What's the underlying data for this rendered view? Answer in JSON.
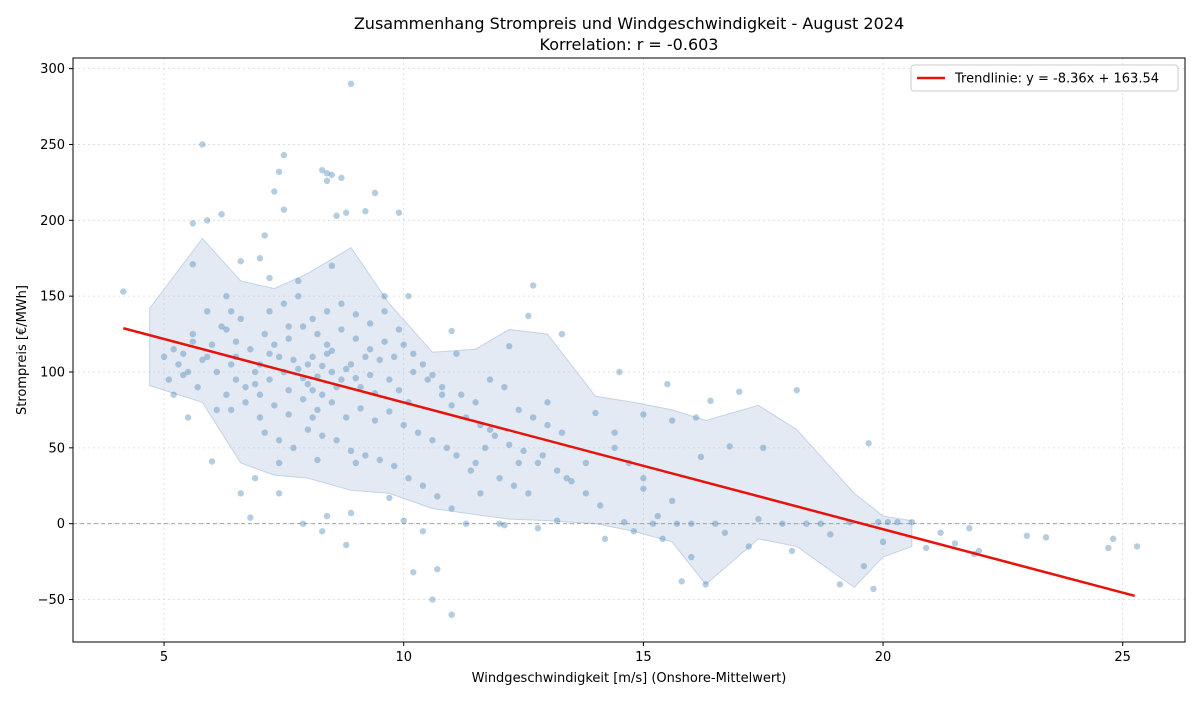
{
  "chart_data": {
    "type": "scatter",
    "title": "Zusammenhang Strompreis und Windgeschwindigkeit - August 2024",
    "subtitle": "Korrelation: r = -0.603",
    "xlabel": "Windgeschwindigkeit [m/s] (Onshore-Mittelwert)",
    "ylabel": "Strompreis [€/MWh]",
    "xlim": [
      3.1,
      26.3
    ],
    "ylim": [
      -78,
      307
    ],
    "xticks": [
      5,
      10,
      15,
      20,
      25
    ],
    "yticks": [
      -50,
      0,
      50,
      100,
      150,
      200,
      250,
      300
    ],
    "grid": true,
    "legend_position": "top-right",
    "colors": {
      "points": "#4682b4",
      "trend": "#e8120c",
      "band": "#b0c4de",
      "zero_line": "#999999"
    },
    "trend": {
      "name": "Trendlinie: y = -8.36x + 163.54",
      "slope": -8.36,
      "intercept": 163.54,
      "x_range": [
        4.15,
        25.25
      ]
    },
    "band": {
      "x": [
        4.7,
        5.8,
        6.6,
        7.3,
        8.0,
        8.9,
        9.7,
        10.6,
        11.5,
        12.2,
        13.0,
        14.0,
        14.8,
        15.6,
        16.3,
        17.4,
        18.2,
        19.4,
        20.0,
        20.6
      ],
      "upper": [
        142,
        188,
        160,
        155,
        165,
        182,
        145,
        113,
        115,
        128,
        125,
        84,
        80,
        75,
        68,
        78,
        62,
        20,
        5,
        2
      ],
      "lower": [
        91,
        80,
        40,
        32,
        30,
        22,
        20,
        10,
        6,
        3,
        2,
        0,
        -5,
        -12,
        -40,
        -10,
        -15,
        -42,
        -22,
        -15
      ]
    },
    "zero_line": 0,
    "scatter_points": [
      [
        4.15,
        153
      ],
      [
        5.0,
        110
      ],
      [
        5.4,
        98
      ],
      [
        5.5,
        70
      ],
      [
        5.2,
        115
      ],
      [
        5.6,
        125
      ],
      [
        5.8,
        250
      ],
      [
        5.9,
        140
      ],
      [
        6.0,
        41
      ],
      [
        6.2,
        204
      ],
      [
        6.3,
        150
      ],
      [
        5.6,
        198
      ],
      [
        5.6,
        171
      ],
      [
        5.9,
        200
      ],
      [
        6.1,
        75
      ],
      [
        6.3,
        128
      ],
      [
        6.5,
        110
      ],
      [
        6.6,
        20
      ],
      [
        6.8,
        4
      ],
      [
        6.6,
        173
      ],
      [
        6.9,
        30
      ],
      [
        7.0,
        175
      ],
      [
        7.1,
        190
      ],
      [
        7.2,
        162
      ],
      [
        7.3,
        219
      ],
      [
        7.4,
        232
      ],
      [
        7.5,
        243
      ],
      [
        7.5,
        207
      ],
      [
        7.4,
        20
      ],
      [
        7.4,
        40
      ],
      [
        7.6,
        130
      ],
      [
        7.8,
        160
      ],
      [
        7.9,
        0
      ],
      [
        8.1,
        70
      ],
      [
        8.2,
        42
      ],
      [
        8.3,
        233
      ],
      [
        8.4,
        231
      ],
      [
        8.4,
        226
      ],
      [
        8.5,
        230
      ],
      [
        8.5,
        170
      ],
      [
        8.3,
        -5
      ],
      [
        8.4,
        5
      ],
      [
        8.6,
        203
      ],
      [
        8.7,
        228
      ],
      [
        8.8,
        205
      ],
      [
        8.8,
        -14
      ],
      [
        8.9,
        290
      ],
      [
        8.9,
        7
      ],
      [
        9.0,
        40
      ],
      [
        9.2,
        206
      ],
      [
        9.4,
        218
      ],
      [
        9.6,
        150
      ],
      [
        9.7,
        17
      ],
      [
        9.9,
        205
      ],
      [
        10.0,
        2
      ],
      [
        10.1,
        150
      ],
      [
        10.2,
        -32
      ],
      [
        10.4,
        -5
      ],
      [
        10.6,
        -50
      ],
      [
        10.7,
        -30
      ],
      [
        11.0,
        -60
      ],
      [
        11.0,
        127
      ],
      [
        11.1,
        112
      ],
      [
        11.3,
        0
      ],
      [
        11.5,
        40
      ],
      [
        11.6,
        20
      ],
      [
        11.8,
        62
      ],
      [
        12.0,
        0
      ],
      [
        12.1,
        -1
      ],
      [
        12.2,
        117
      ],
      [
        12.4,
        40
      ],
      [
        12.6,
        137
      ],
      [
        12.7,
        157
      ],
      [
        12.8,
        -3
      ],
      [
        13.0,
        80
      ],
      [
        13.2,
        2
      ],
      [
        13.3,
        125
      ],
      [
        13.4,
        30
      ],
      [
        13.8,
        40
      ],
      [
        14.0,
        73
      ],
      [
        14.2,
        -10
      ],
      [
        14.4,
        60
      ],
      [
        14.5,
        100
      ],
      [
        14.6,
        1
      ],
      [
        14.8,
        -5
      ],
      [
        15.0,
        72
      ],
      [
        15.0,
        23
      ],
      [
        15.2,
        0
      ],
      [
        15.4,
        -10
      ],
      [
        15.5,
        92
      ],
      [
        15.6,
        68
      ],
      [
        15.7,
        0
      ],
      [
        15.8,
        -38
      ],
      [
        16.0,
        -22
      ],
      [
        16.0,
        0
      ],
      [
        16.1,
        70
      ],
      [
        16.2,
        44
      ],
      [
        16.3,
        -40
      ],
      [
        16.4,
        81
      ],
      [
        16.5,
        0
      ],
      [
        16.7,
        -6
      ],
      [
        16.8,
        51
      ],
      [
        17.0,
        87
      ],
      [
        17.2,
        -15
      ],
      [
        17.4,
        3
      ],
      [
        17.5,
        50
      ],
      [
        17.9,
        0
      ],
      [
        18.1,
        -18
      ],
      [
        18.2,
        88
      ],
      [
        18.4,
        0
      ],
      [
        18.7,
        0
      ],
      [
        18.9,
        -7
      ],
      [
        19.1,
        -40
      ],
      [
        19.3,
        1
      ],
      [
        19.6,
        -28
      ],
      [
        19.7,
        53
      ],
      [
        19.8,
        -43
      ],
      [
        19.9,
        1
      ],
      [
        20.0,
        -12
      ],
      [
        20.1,
        1
      ],
      [
        20.3,
        1
      ],
      [
        20.6,
        1
      ],
      [
        20.9,
        -16
      ],
      [
        21.2,
        -6
      ],
      [
        21.5,
        -13
      ],
      [
        21.8,
        -3
      ],
      [
        21.9,
        -20
      ],
      [
        22.0,
        -18
      ],
      [
        23.0,
        -8
      ],
      [
        23.4,
        -9
      ],
      [
        24.7,
        -16
      ],
      [
        24.8,
        -10
      ],
      [
        25.3,
        -15
      ],
      [
        6.4,
        105
      ],
      [
        6.7,
        90
      ],
      [
        6.9,
        100
      ],
      [
        7.0,
        85
      ],
      [
        7.2,
        95
      ],
      [
        7.4,
        110
      ],
      [
        7.6,
        88
      ],
      [
        7.8,
        102
      ],
      [
        8.0,
        92
      ],
      [
        8.1,
        110
      ],
      [
        8.3,
        85
      ],
      [
        8.5,
        100
      ],
      [
        8.7,
        95
      ],
      [
        8.9,
        105
      ],
      [
        9.1,
        90
      ],
      [
        9.3,
        98
      ],
      [
        9.5,
        108
      ],
      [
        9.7,
        95
      ],
      [
        9.9,
        88
      ],
      [
        10.1,
        80
      ],
      [
        6.5,
        120
      ],
      [
        6.8,
        115
      ],
      [
        7.1,
        125
      ],
      [
        7.3,
        118
      ],
      [
        7.6,
        122
      ],
      [
        7.9,
        130
      ],
      [
        8.2,
        125
      ],
      [
        8.4,
        118
      ],
      [
        8.7,
        128
      ],
      [
        9.0,
        122
      ],
      [
        9.3,
        115
      ],
      [
        9.6,
        120
      ],
      [
        9.8,
        110
      ],
      [
        10.2,
        100
      ],
      [
        10.5,
        95
      ],
      [
        10.8,
        90
      ],
      [
        6.4,
        75
      ],
      [
        6.7,
        80
      ],
      [
        7.0,
        70
      ],
      [
        7.3,
        78
      ],
      [
        7.6,
        72
      ],
      [
        7.9,
        82
      ],
      [
        8.2,
        75
      ],
      [
        8.5,
        80
      ],
      [
        8.8,
        70
      ],
      [
        9.1,
        76
      ],
      [
        9.4,
        68
      ],
      [
        9.7,
        74
      ],
      [
        10.0,
        65
      ],
      [
        10.3,
        60
      ],
      [
        10.6,
        55
      ],
      [
        10.9,
        50
      ],
      [
        11.2,
        85
      ],
      [
        11.5,
        80
      ],
      [
        11.8,
        95
      ],
      [
        12.1,
        90
      ],
      [
        12.4,
        75
      ],
      [
        12.7,
        70
      ],
      [
        13.0,
        65
      ],
      [
        13.3,
        60
      ],
      [
        11.1,
        45
      ],
      [
        11.4,
        35
      ],
      [
        11.7,
        50
      ],
      [
        12.0,
        30
      ],
      [
        12.3,
        25
      ],
      [
        12.6,
        20
      ],
      [
        12.9,
        45
      ],
      [
        13.2,
        35
      ],
      [
        13.5,
        28
      ],
      [
        13.8,
        20
      ],
      [
        14.1,
        12
      ],
      [
        14.4,
        50
      ],
      [
        14.7,
        40
      ],
      [
        15.0,
        30
      ],
      [
        15.3,
        5
      ],
      [
        15.6,
        15
      ],
      [
        5.1,
        95
      ],
      [
        5.3,
        105
      ],
      [
        5.5,
        100
      ],
      [
        5.7,
        90
      ],
      [
        5.9,
        110
      ],
      [
        6.1,
        100
      ],
      [
        6.3,
        85
      ],
      [
        6.5,
        95
      ],
      [
        5.2,
        85
      ],
      [
        5.4,
        112
      ],
      [
        5.6,
        120
      ],
      [
        5.8,
        108
      ],
      [
        6.0,
        118
      ],
      [
        6.2,
        130
      ],
      [
        6.4,
        140
      ],
      [
        6.6,
        135
      ],
      [
        7.1,
        60
      ],
      [
        7.4,
        55
      ],
      [
        7.7,
        50
      ],
      [
        8.0,
        62
      ],
      [
        8.3,
        58
      ],
      [
        8.6,
        55
      ],
      [
        8.9,
        48
      ],
      [
        9.2,
        45
      ],
      [
        9.5,
        42
      ],
      [
        9.8,
        38
      ],
      [
        10.1,
        30
      ],
      [
        10.4,
        25
      ],
      [
        10.7,
        18
      ],
      [
        11.0,
        10
      ],
      [
        7.2,
        140
      ],
      [
        7.5,
        145
      ],
      [
        7.8,
        150
      ],
      [
        8.1,
        135
      ],
      [
        8.4,
        140
      ],
      [
        8.7,
        145
      ],
      [
        9.0,
        138
      ],
      [
        9.3,
        132
      ],
      [
        9.6,
        140
      ],
      [
        9.9,
        128
      ],
      [
        8.0,
        105
      ],
      [
        8.2,
        97
      ],
      [
        8.4,
        112
      ],
      [
        8.6,
        90
      ],
      [
        8.8,
        102
      ],
      [
        9.0,
        96
      ],
      [
        9.2,
        110
      ],
      [
        9.4,
        86
      ],
      [
        7.5,
        100
      ],
      [
        7.7,
        108
      ],
      [
        7.9,
        96
      ],
      [
        8.1,
        88
      ],
      [
        8.3,
        104
      ],
      [
        8.5,
        114
      ],
      [
        7.0,
        105
      ],
      [
        7.2,
        112
      ],
      [
        6.9,
        92
      ],
      [
        10.0,
        118
      ],
      [
        10.2,
        112
      ],
      [
        10.4,
        105
      ],
      [
        10.6,
        98
      ],
      [
        10.8,
        85
      ],
      [
        11.0,
        78
      ],
      [
        11.3,
        70
      ],
      [
        11.6,
        65
      ],
      [
        11.9,
        58
      ],
      [
        12.2,
        52
      ],
      [
        12.5,
        48
      ],
      [
        12.8,
        40
      ]
    ]
  }
}
